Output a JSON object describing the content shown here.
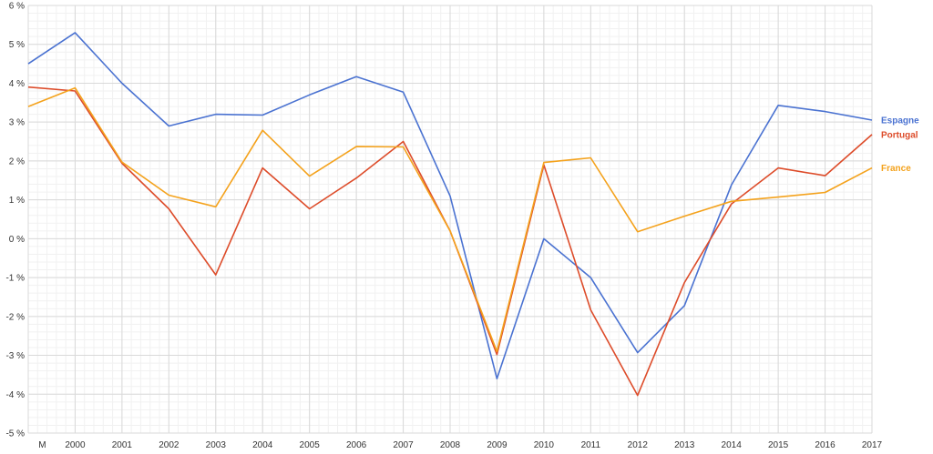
{
  "chart_data": {
    "type": "line",
    "x_labels": [
      "M",
      "2000",
      "2001",
      "2002",
      "2003",
      "2004",
      "2005",
      "2006",
      "2007",
      "2008",
      "2009",
      "2010",
      "2011",
      "2012",
      "2013",
      "2014",
      "2015",
      "2016",
      "2017"
    ],
    "x_positions": [
      -0.7,
      0,
      1,
      2,
      3,
      4,
      5,
      6,
      7,
      8,
      9,
      10,
      11,
      12,
      13,
      14,
      15,
      16,
      17
    ],
    "xlim": [
      -1,
      17
    ],
    "ylim": [
      -5,
      6
    ],
    "y_ticks": [
      6,
      5,
      4,
      3,
      2,
      1,
      0,
      -1,
      -2,
      -3,
      -4,
      -5
    ],
    "y_tick_labels": [
      "6 %",
      "5 %",
      "4 %",
      "3 %",
      "2 %",
      "1 %",
      "0 %",
      "-1 %",
      "-2 %",
      "-3 %",
      "-4 %",
      "-5 %"
    ],
    "grid": true,
    "legend_placement": "right-end labels",
    "series": [
      {
        "name": "Espagne",
        "color": "#4a72d1",
        "x": [
          -1,
          0,
          1,
          2,
          3,
          4,
          5,
          6,
          7,
          8,
          9,
          10,
          11,
          12,
          13,
          14,
          15,
          16,
          17
        ],
        "y": [
          4.5,
          5.3,
          4.0,
          2.9,
          3.2,
          3.18,
          3.7,
          4.17,
          3.77,
          1.1,
          -3.6,
          0.0,
          -1.0,
          -2.93,
          -1.72,
          1.38,
          3.43,
          3.27,
          3.05
        ]
      },
      {
        "name": "Portugal",
        "color": "#dd4c2a",
        "x": [
          -1,
          0,
          1,
          2,
          3,
          4,
          5,
          6,
          7,
          8,
          9,
          10,
          11,
          12,
          13,
          14,
          15,
          16,
          17
        ],
        "y": [
          3.9,
          3.8,
          1.94,
          0.77,
          -0.93,
          1.82,
          0.77,
          1.56,
          2.5,
          0.2,
          -2.98,
          1.9,
          -1.83,
          -4.03,
          -1.13,
          0.89,
          1.82,
          1.62,
          2.68
        ]
      },
      {
        "name": "France",
        "color": "#f4a21c",
        "x": [
          -1,
          0,
          1,
          2,
          3,
          4,
          5,
          6,
          7,
          8,
          9,
          10,
          11,
          12,
          13,
          14,
          15,
          16,
          17
        ],
        "y": [
          3.4,
          3.88,
          1.97,
          1.12,
          0.82,
          2.79,
          1.61,
          2.37,
          2.36,
          0.2,
          -2.9,
          1.96,
          2.08,
          0.18,
          0.58,
          0.96,
          1.07,
          1.19,
          1.82
        ]
      }
    ]
  }
}
